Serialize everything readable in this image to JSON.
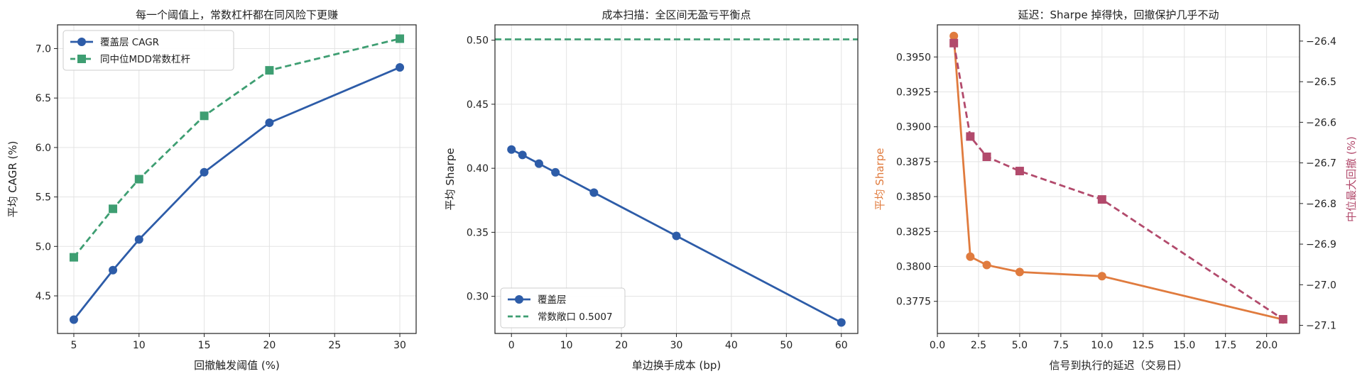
{
  "chart_data": [
    {
      "type": "line",
      "title": "每一个阈值上，常数杠杆都在同风险下更赚",
      "xlabel": "回撤触发阈值 (%)",
      "ylabel": "平均 CAGR (%)",
      "xlim": [
        3.75,
        31.25
      ],
      "ylim": [
        4.12,
        7.24
      ],
      "xticks": [
        "5",
        "10",
        "15",
        "20",
        "25",
        "30"
      ],
      "yticks": [
        "4.5",
        "5.0",
        "5.5",
        "6.0",
        "6.5",
        "7.0"
      ],
      "grid": true,
      "legend_position": "upper-left",
      "series": [
        {
          "name": "覆盖层 CAGR",
          "color": "#2d5ca8",
          "style": "solid",
          "marker": "circle",
          "x": [
            5,
            8,
            10,
            15,
            20,
            30
          ],
          "y": [
            4.26,
            4.76,
            5.07,
            5.75,
            6.25,
            6.81
          ]
        },
        {
          "name": "同中位MDD常数杠杆",
          "color": "#3e9e72",
          "style": "dashed",
          "marker": "square",
          "x": [
            5,
            8,
            10,
            15,
            20,
            30
          ],
          "y": [
            4.89,
            5.38,
            5.68,
            6.32,
            6.78,
            7.1
          ]
        }
      ]
    },
    {
      "type": "line",
      "title": "成本扫描：全区间无盈亏平衡点",
      "xlabel": "单边换手成本 (bp)",
      "ylabel": "平均 Sharpe",
      "xlim": [
        -3,
        63
      ],
      "ylim": [
        0.271,
        0.512
      ],
      "xticks": [
        "0",
        "10",
        "20",
        "30",
        "40",
        "50",
        "60"
      ],
      "yticks": [
        "0.30",
        "0.35",
        "0.40",
        "0.45",
        "0.50"
      ],
      "grid": true,
      "legend_position": "lower-left",
      "series": [
        {
          "name": "覆盖层",
          "color": "#2d5ca8",
          "style": "solid",
          "marker": "circle",
          "x": [
            0,
            2,
            5,
            8,
            15,
            30,
            60
          ],
          "y": [
            0.4146,
            0.4104,
            0.4036,
            0.3968,
            0.381,
            0.3472,
            0.2796
          ]
        },
        {
          "name": "常数敞口 0.5007",
          "color": "#3e9e72",
          "style": "dashed",
          "marker": "none",
          "hline": 0.5007
        }
      ]
    },
    {
      "type": "line",
      "title": "延迟：Sharpe 掉得快，回撤保护几乎不动",
      "xlabel": "信号到执行的延迟（交易日）",
      "ylabel": "平均 Sharpe",
      "ylabel_right": "中位最大回撤 (%)",
      "xlim": [
        0,
        22
      ],
      "ylim": [
        0.3752,
        0.3973
      ],
      "ylim_right": [
        -27.12,
        -26.36
      ],
      "xticks": [
        "0.0",
        "2.5",
        "5.0",
        "7.5",
        "10.0",
        "12.5",
        "15.0",
        "17.5",
        "20.0"
      ],
      "yticks": [
        "0.3775",
        "0.3800",
        "0.3825",
        "0.3850",
        "0.3875",
        "0.3900",
        "0.3925",
        "0.3950"
      ],
      "yticks_right": [
        "-26.4",
        "-26.5",
        "-26.6",
        "-26.7",
        "-26.8",
        "-26.9",
        "-27.0",
        "-27.1"
      ],
      "grid": true,
      "series": [
        {
          "name": "平均 Sharpe",
          "axis": "left",
          "color": "#e07b3e",
          "style": "solid",
          "marker": "circle",
          "x": [
            1,
            2,
            3,
            5,
            10,
            21
          ],
          "y": [
            0.3965,
            0.3807,
            0.3801,
            0.3796,
            0.3793,
            0.3762
          ]
        },
        {
          "name": "中位最大回撤",
          "axis": "right",
          "color": "#b24a6c",
          "style": "dashed",
          "marker": "square",
          "x": [
            1,
            2,
            3,
            5,
            10,
            21
          ],
          "y": [
            -26.405,
            -26.635,
            -26.685,
            -26.72,
            -26.79,
            -27.085
          ]
        }
      ]
    }
  ]
}
